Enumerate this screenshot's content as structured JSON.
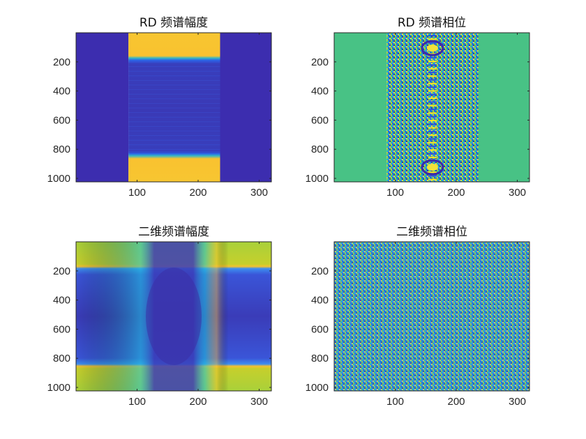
{
  "colors": {
    "parula_dark": "#3e26a8",
    "parula_blue": "#2d6ef0",
    "parula_cyan": "#14b6bf",
    "parula_green": "#7ccd4b",
    "parula_yellow": "#f9c230",
    "parula_bright_yellow": "#f9f620",
    "axis": "#262626"
  },
  "chart_data": [
    {
      "type": "heatmap",
      "title": "RD 频谱幅度",
      "colormap": "parula",
      "xlim": [
        0,
        320
      ],
      "ylim": [
        1024,
        0
      ],
      "xticks": [
        100,
        200,
        300
      ],
      "yticks": [
        200,
        400,
        600,
        800,
        1000
      ],
      "xtick_labels": [
        "100",
        "200",
        "300"
      ],
      "ytick_labels": [
        "200",
        "400",
        "600",
        "800",
        "1000"
      ],
      "regions": [
        {
          "x": [
            0,
            86
          ],
          "y": [
            0,
            1024
          ],
          "level": 0.02
        },
        {
          "x": [
            86,
            236
          ],
          "y": [
            0,
            180
          ],
          "level": 0.9
        },
        {
          "x": [
            86,
            236
          ],
          "y": [
            180,
            200
          ],
          "level": 0.55
        },
        {
          "x": [
            86,
            236
          ],
          "y": [
            200,
            820
          ],
          "level": 0.1
        },
        {
          "x": [
            86,
            236
          ],
          "y": [
            820,
            840
          ],
          "level": 0.55
        },
        {
          "x": [
            86,
            236
          ],
          "y": [
            840,
            1024
          ],
          "level": 0.9
        },
        {
          "x": [
            236,
            320
          ],
          "y": [
            0,
            1024
          ],
          "level": 0.02
        }
      ]
    },
    {
      "type": "heatmap",
      "title": "RD 频谱相位",
      "colormap": "parula",
      "xlim": [
        0,
        320
      ],
      "ylim": [
        1024,
        0
      ],
      "xticks": [
        100,
        200,
        300
      ],
      "yticks": [
        200,
        400,
        600,
        800,
        1000
      ],
      "xtick_labels": [
        "100",
        "200",
        "300"
      ],
      "ytick_labels": [
        "200",
        "400",
        "600",
        "800",
        "1000"
      ],
      "regions": [
        {
          "x": [
            0,
            86
          ],
          "y": [
            0,
            1024
          ],
          "level": 0.55
        },
        {
          "x": [
            86,
            236
          ],
          "y": [
            0,
            1024
          ],
          "level": "noise"
        },
        {
          "x": [
            236,
            320
          ],
          "y": [
            0,
            1024
          ],
          "level": 0.55
        }
      ]
    },
    {
      "type": "heatmap",
      "title": "二维频谱幅度",
      "colormap": "parula",
      "xlim": [
        0,
        320
      ],
      "ylim": [
        1024,
        0
      ],
      "xticks": [
        100,
        200,
        300
      ],
      "yticks": [
        200,
        400,
        600,
        800,
        1000
      ],
      "xtick_labels": [
        "100",
        "200",
        "300"
      ],
      "ytick_labels": [
        "200",
        "400",
        "600",
        "800",
        "1000"
      ],
      "regions": [
        {
          "x": [
            0,
            320
          ],
          "y": [
            0,
            180
          ],
          "level": 0.72
        },
        {
          "x": [
            0,
            320
          ],
          "y": [
            180,
            840
          ],
          "level": 0.12
        },
        {
          "x": [
            0,
            320
          ],
          "y": [
            840,
            1024
          ],
          "level": 0.72
        }
      ]
    },
    {
      "type": "heatmap",
      "title": "二维频谱相位",
      "colormap": "parula",
      "xlim": [
        0,
        320
      ],
      "ylim": [
        1024,
        0
      ],
      "xticks": [
        100,
        200,
        300
      ],
      "yticks": [
        200,
        400,
        600,
        800,
        1000
      ],
      "xtick_labels": [
        "100",
        "200",
        "300"
      ],
      "ytick_labels": [
        "200",
        "400",
        "600",
        "800",
        "1000"
      ],
      "regions": [
        {
          "x": [
            0,
            320
          ],
          "y": [
            0,
            1024
          ],
          "level": "noise"
        }
      ]
    }
  ]
}
